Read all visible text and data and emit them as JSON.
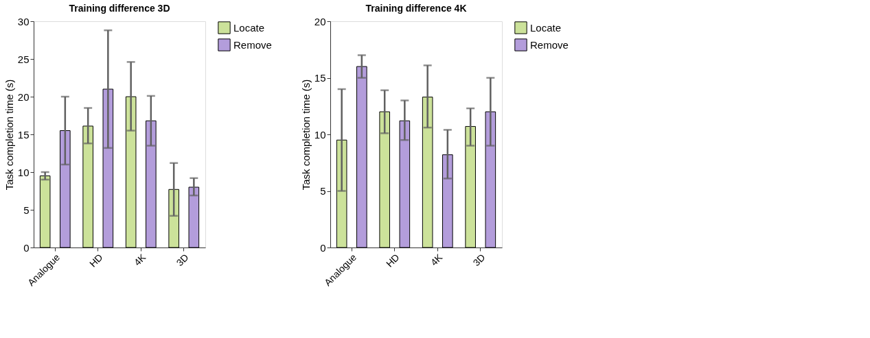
{
  "chart_data": [
    {
      "type": "bar",
      "title": "Training difference 3D",
      "ylabel": "Task completion time (s)",
      "categories": [
        "Analogue",
        "HD",
        "4K",
        "3D"
      ],
      "ylim": [
        0,
        30
      ],
      "yticks": [
        0,
        5,
        10,
        15,
        20,
        25,
        30
      ],
      "grid": false,
      "legend": "top right",
      "series": [
        {
          "name": "Locate",
          "color": "#cce29a",
          "values": [
            9.5,
            16.1,
            20.0,
            7.7
          ],
          "errors": [
            [
              9.0,
              10.0
            ],
            [
              13.8,
              18.5
            ],
            [
              15.5,
              24.6
            ],
            [
              4.2,
              11.2
            ]
          ]
        },
        {
          "name": "Remove",
          "color": "#b39ddb",
          "values": [
            15.5,
            21.0,
            16.8,
            8.0
          ],
          "errors": [
            [
              11.0,
              20.0
            ],
            [
              13.2,
              28.8
            ],
            [
              13.5,
              20.1
            ],
            [
              6.9,
              9.2
            ]
          ]
        }
      ]
    },
    {
      "type": "bar",
      "title": "Training difference 4K",
      "ylabel": "Task completion time (s)",
      "categories": [
        "Analogue",
        "HD",
        "4K",
        "3D"
      ],
      "ylim": [
        0,
        20
      ],
      "yticks": [
        0,
        5,
        10,
        15,
        20
      ],
      "grid": false,
      "legend": "top right",
      "series": [
        {
          "name": "Locate",
          "color": "#cce29a",
          "values": [
            9.5,
            12.0,
            13.3,
            10.7
          ],
          "errors": [
            [
              5.0,
              14.0
            ],
            [
              10.1,
              13.9
            ],
            [
              10.6,
              16.1
            ],
            [
              9.0,
              12.3
            ]
          ]
        },
        {
          "name": "Remove",
          "color": "#b39ddb",
          "values": [
            16.0,
            11.2,
            8.2,
            12.0
          ],
          "errors": [
            [
              15.0,
              17.0
            ],
            [
              9.5,
              13.0
            ],
            [
              6.1,
              10.4
            ],
            [
              9.0,
              15.0
            ]
          ]
        }
      ]
    }
  ]
}
